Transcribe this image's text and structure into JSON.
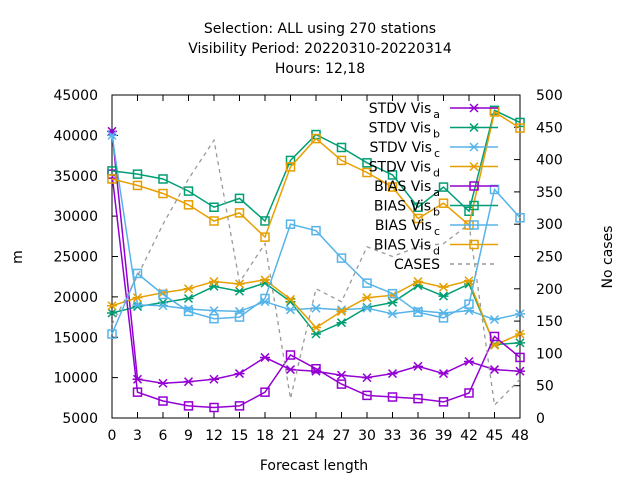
{
  "chart_data": {
    "type": "line",
    "title_lines": [
      "Selection: ALL using   270 stations",
      "Visibility   Period: 20220310-20220314",
      "Hours:  12,18"
    ],
    "xlabel": "Forecast length",
    "ylabel": "m",
    "y2label": "No cases",
    "x": [
      0,
      3,
      6,
      9,
      12,
      15,
      18,
      21,
      24,
      27,
      30,
      33,
      36,
      39,
      42,
      45,
      48
    ],
    "xlim": [
      0,
      48
    ],
    "ylim": [
      5000,
      45000
    ],
    "y2lim": [
      0,
      500
    ],
    "yticks": [
      "5000",
      "10000",
      "15000",
      "20000",
      "25000",
      "30000",
      "35000",
      "40000",
      "45000"
    ],
    "y2ticks": [
      "0",
      "50",
      "100",
      "150",
      "200",
      "250",
      "300",
      "350",
      "400",
      "450",
      "500"
    ],
    "xticks": [
      "0",
      "3",
      "6",
      "9",
      "12",
      "15",
      "18",
      "21",
      "24",
      "27",
      "30",
      "33",
      "36",
      "39",
      "42",
      "45",
      "48"
    ],
    "legend_position": "top-right",
    "series": [
      {
        "name": "STDV Vis",
        "sub": "a",
        "color": "#9400d3",
        "marker": "cross",
        "axis": "y",
        "values": [
          40500,
          9800,
          9300,
          9500,
          9800,
          10500,
          12500,
          11000,
          10800,
          10300,
          10000,
          10500,
          11400,
          10500,
          12000,
          11000,
          10800
        ]
      },
      {
        "name": "STDV Vis",
        "sub": "b",
        "color": "#009e73",
        "marker": "cross",
        "axis": "y",
        "values": [
          18000,
          18800,
          19300,
          19800,
          21300,
          20700,
          21700,
          19400,
          15400,
          16800,
          18700,
          19300,
          21400,
          20100,
          21600,
          14100,
          14300
        ]
      },
      {
        "name": "STDV Vis",
        "sub": "c",
        "color": "#56b4e9",
        "marker": "cross",
        "axis": "y",
        "values": [
          40000,
          19000,
          18900,
          18500,
          18300,
          18200,
          19400,
          18400,
          18600,
          18400,
          18600,
          17900,
          18300,
          18000,
          18300,
          17200,
          17900
        ]
      },
      {
        "name": "STDV Vis",
        "sub": "d",
        "color": "#e69f00",
        "marker": "cross",
        "axis": "y",
        "values": [
          18900,
          19900,
          20500,
          21000,
          21900,
          21600,
          22100,
          19700,
          16200,
          18200,
          19900,
          20200,
          21900,
          21200,
          22000,
          14000,
          15400
        ]
      },
      {
        "name": "BIAS Vis",
        "sub": "a",
        "color": "#9400d3",
        "marker": "square",
        "axis": "y",
        "values": [
          35200,
          8200,
          7100,
          6500,
          6300,
          6500,
          8200,
          12800,
          11100,
          9200,
          7800,
          7600,
          7400,
          7000,
          8100,
          15100,
          12500
        ]
      },
      {
        "name": "BIAS Vis",
        "sub": "b",
        "color": "#009e73",
        "marker": "square",
        "axis": "y",
        "values": [
          35600,
          35200,
          34600,
          33100,
          31100,
          32200,
          29400,
          36900,
          40100,
          38500,
          36600,
          35100,
          31100,
          33600,
          30600,
          43100,
          41600
        ]
      },
      {
        "name": "BIAS Vis",
        "sub": "c",
        "color": "#56b4e9",
        "marker": "square",
        "axis": "y",
        "values": [
          15400,
          22900,
          20300,
          18200,
          17300,
          17500,
          19800,
          29000,
          28200,
          24800,
          21700,
          20400,
          18100,
          17400,
          19100,
          33300,
          29800
        ]
      },
      {
        "name": "BIAS Vis",
        "sub": "d",
        "color": "#e69f00",
        "marker": "square",
        "axis": "y",
        "values": [
          34600,
          33800,
          32800,
          31400,
          29400,
          30400,
          27400,
          36100,
          39600,
          36900,
          35400,
          33600,
          29700,
          31600,
          28900,
          42900,
          40900
        ]
      },
      {
        "name": "CASES",
        "sub": "",
        "color": "#999999",
        "marker": "none",
        "dashed": true,
        "axis": "y2",
        "values": [
          145,
          220,
          300,
          370,
          430,
          210,
          270,
          30,
          200,
          180,
          265,
          250,
          265,
          270,
          300,
          20,
          60
        ]
      }
    ]
  }
}
